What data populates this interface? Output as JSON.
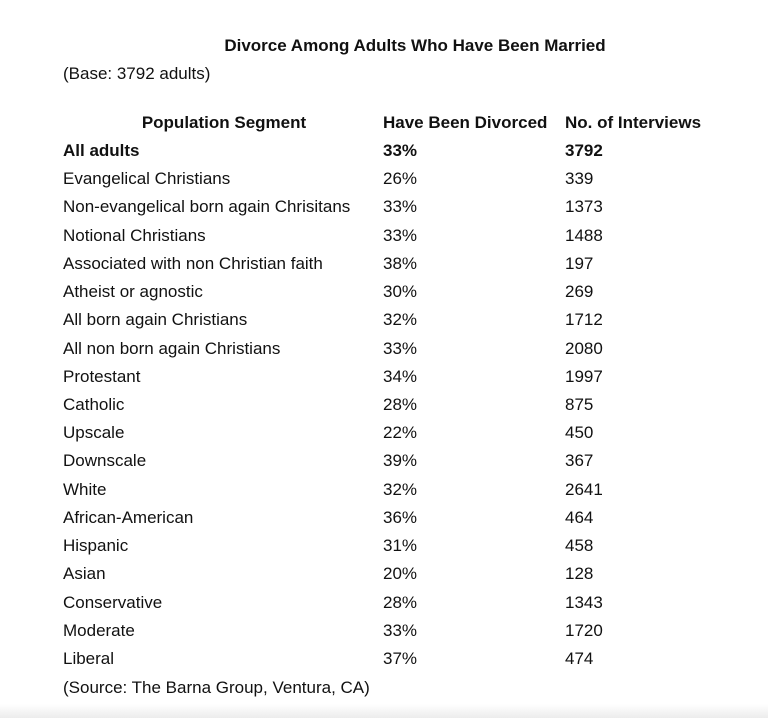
{
  "title": "Divorce Among Adults Who Have Been Married",
  "subtitle": "(Base: 3792 adults)",
  "table": {
    "headers": [
      "Population Segment",
      "Have Been Divorced",
      "No. of Interviews"
    ],
    "rows": [
      [
        "All adults",
        "33%",
        "3792"
      ],
      [
        "Evangelical Christians",
        "26%",
        "339"
      ],
      [
        "Non-evangelical born again Chrisitans",
        "33%",
        "1373"
      ],
      [
        "Notional Christians",
        "33%",
        "1488"
      ],
      [
        "Associated with non Christian faith",
        "38%",
        "197"
      ],
      [
        "Atheist or agnostic",
        "30%",
        "269"
      ],
      [
        "All born again Christians",
        "32%",
        "1712"
      ],
      [
        "All non born again Christians",
        "33%",
        "2080"
      ],
      [
        "Protestant",
        "34%",
        "1997"
      ],
      [
        "Catholic",
        "28%",
        "875"
      ],
      [
        "Upscale",
        "22%",
        "450"
      ],
      [
        "Downscale",
        "39%",
        "367"
      ],
      [
        "White",
        "32%",
        "2641"
      ],
      [
        "African-American",
        "36%",
        "464"
      ],
      [
        "Hispanic",
        "31%",
        "458"
      ],
      [
        "Asian",
        "20%",
        "128"
      ],
      [
        "Conservative",
        "28%",
        "1343"
      ],
      [
        "Moderate",
        "33%",
        "1720"
      ],
      [
        "Liberal",
        "37%",
        "474"
      ]
    ]
  },
  "source": "(Source: The Barna Group, Ventura, CA)"
}
